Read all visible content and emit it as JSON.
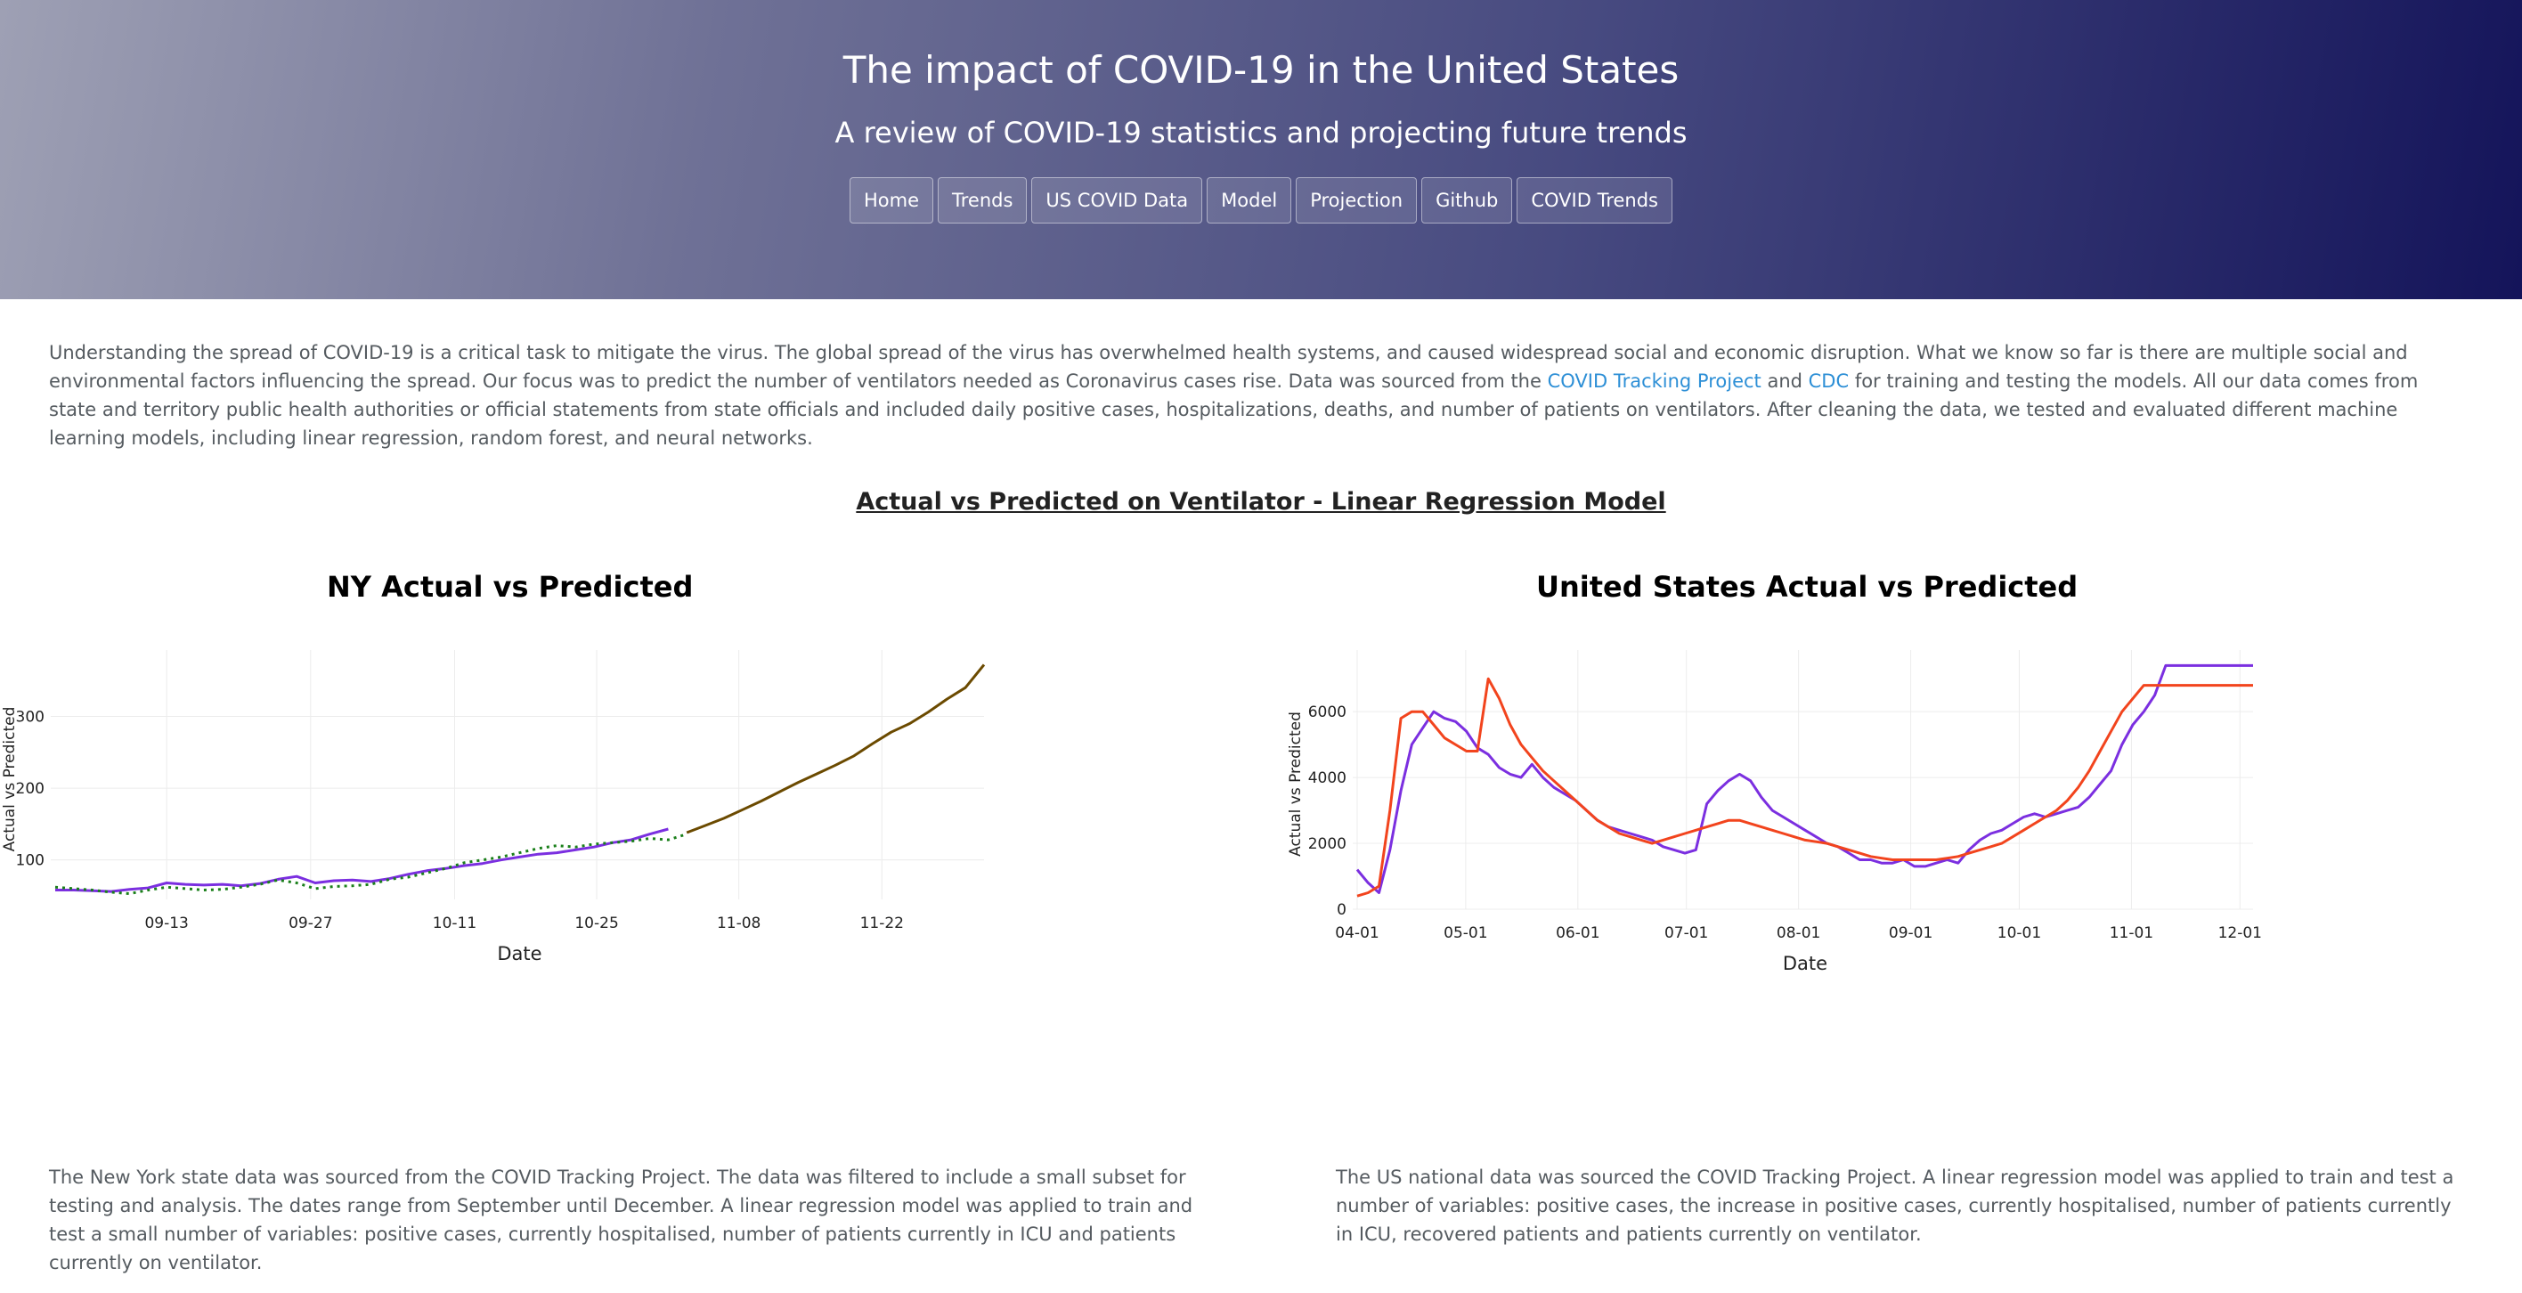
{
  "header": {
    "title": "The impact of COVID-19 in the United States",
    "subtitle": "A review of COVID-19 statistics and projecting future trends",
    "nav": [
      "Home",
      "Trends",
      "US COVID Data",
      "Model",
      "Projection",
      "Github",
      "COVID Trends"
    ]
  },
  "intro": {
    "part1": "Understanding the spread of COVID-19 is a critical task to mitigate the virus. The global spread of the virus has overwhelmed health systems, and caused widespread social and economic disruption. What we know so far is there are multiple social and environmental factors influencing the spread. Our focus was to predict the number of ventilators needed as Coronavirus cases rise. Data was sourced from the ",
    "link1": "COVID Tracking Project",
    "part2": " and ",
    "link2": "CDC",
    "part3": " for training and testing the models. All our data comes from state and territory public health authorities or official statements from state officials and included daily positive cases, hospitalizations, deaths, and number of patients on ventilators. After cleaning the data, we tested and evaluated different machine learning models, including linear regression, random forest, and neural networks."
  },
  "section_title": "Actual vs Predicted on Ventilator - Linear Regression Model",
  "colors": {
    "actual": "#7b2fe0",
    "predicted_ny": "#1a7f1a",
    "projection_ny": "#6b4a00",
    "predicted_us": "#f2441d"
  },
  "chart_data": [
    {
      "type": "line",
      "title": "NY Actual vs Predicted",
      "xlabel": "Date",
      "ylabel": "Actual vs Predicted",
      "x_ticks": [
        "09-13",
        "09-27",
        "10-11",
        "10-25",
        "11-08",
        "11-22"
      ],
      "y_ticks": [
        100,
        200,
        300
      ],
      "ylim": [
        45,
        380
      ],
      "series": [
        {
          "color": "#7b2fe0",
          "style": "solid",
          "x": [
            0,
            2,
            4,
            6,
            8,
            10,
            12,
            14,
            16,
            18,
            20,
            22,
            24,
            26,
            28,
            30,
            32,
            34,
            36,
            38,
            40,
            42,
            44,
            46,
            48,
            50,
            52,
            54,
            56,
            58,
            60,
            62,
            64,
            66
          ],
          "values": [
            58,
            58,
            57,
            56,
            59,
            61,
            68,
            66,
            65,
            66,
            64,
            67,
            73,
            77,
            68,
            71,
            72,
            70,
            74,
            80,
            85,
            88,
            92,
            95,
            100,
            104,
            108,
            110,
            114,
            118,
            124,
            128,
            136,
            143
          ]
        },
        {
          "color": "#1a7f1a",
          "style": "dotted",
          "x": [
            0,
            2,
            4,
            6,
            8,
            10,
            12,
            14,
            16,
            18,
            20,
            22,
            24,
            26,
            28,
            30,
            32,
            34,
            36,
            38,
            40,
            42,
            44,
            46,
            48,
            50,
            52,
            54,
            56,
            58,
            60,
            62,
            64,
            66,
            68
          ],
          "values": [
            62,
            60,
            58,
            55,
            53,
            58,
            62,
            60,
            58,
            59,
            62,
            66,
            72,
            68,
            60,
            63,
            64,
            66,
            73,
            76,
            82,
            88,
            96,
            100,
            104,
            110,
            116,
            120,
            118,
            122,
            124,
            126,
            130,
            128,
            136
          ]
        },
        {
          "color": "#6b4a00",
          "style": "solid",
          "x": [
            68,
            70,
            72,
            74,
            76,
            78,
            80,
            82,
            84,
            86,
            88,
            90,
            92,
            94,
            96,
            98,
            100
          ],
          "values": [
            138,
            148,
            158,
            170,
            182,
            195,
            208,
            220,
            232,
            245,
            262,
            278,
            290,
            306,
            324,
            340,
            372
          ]
        }
      ]
    },
    {
      "type": "line",
      "title": "United States Actual vs Predicted",
      "xlabel": "Date",
      "ylabel": "Actual vs Predicted",
      "x_ticks": [
        "04-01",
        "05-01",
        "06-01",
        "07-01",
        "08-01",
        "09-01",
        "10-01",
        "11-01",
        "12-01"
      ],
      "y_ticks": [
        0,
        2000,
        4000,
        6000
      ],
      "ylim": [
        0,
        7600
      ],
      "series": [
        {
          "color": "#7b2fe0",
          "style": "solid",
          "x": [
            0,
            3,
            6,
            9,
            12,
            15,
            18,
            21,
            24,
            27,
            30,
            33,
            36,
            39,
            42,
            45,
            48,
            51,
            54,
            57,
            60,
            63,
            66,
            69,
            72,
            75,
            78,
            81,
            84,
            87,
            90,
            93,
            96,
            99,
            102,
            105,
            108,
            111,
            114,
            117,
            120,
            123,
            126,
            129,
            132,
            135,
            138,
            141,
            144,
            147,
            150,
            153,
            156,
            159,
            162,
            165,
            168,
            171,
            174,
            177,
            180,
            183,
            186,
            189,
            192,
            195,
            198,
            201,
            204,
            207,
            210,
            213,
            216,
            219,
            222,
            225,
            228,
            231,
            234,
            237,
            240,
            243,
            246
          ],
          "values": [
            1200,
            800,
            500,
            1800,
            3600,
            5000,
            5500,
            6000,
            5800,
            5700,
            5400,
            4900,
            4700,
            4300,
            4100,
            4000,
            4400,
            4000,
            3700,
            3500,
            3300,
            3000,
            2700,
            2500,
            2400,
            2300,
            2200,
            2100,
            1900,
            1800,
            1700,
            1800,
            3200,
            3600,
            3900,
            4100,
            3900,
            3400,
            3000,
            2800,
            2600,
            2400,
            2200,
            2000,
            1900,
            1700,
            1500,
            1500,
            1400,
            1400,
            1500,
            1300,
            1300,
            1400,
            1500,
            1400,
            1800,
            2100,
            2300,
            2400,
            2600,
            2800,
            2900,
            2800,
            2900,
            3000,
            3100,
            3400,
            3800,
            4200,
            5000,
            5600,
            6000,
            6500,
            7400,
            7400,
            7400,
            7400,
            7400,
            7400,
            7400,
            7400,
            7400
          ]
        },
        {
          "color": "#f2441d",
          "style": "solid",
          "x": [
            0,
            3,
            6,
            9,
            12,
            15,
            18,
            21,
            24,
            27,
            30,
            33,
            36,
            39,
            42,
            45,
            48,
            51,
            54,
            57,
            60,
            63,
            66,
            69,
            72,
            75,
            78,
            81,
            84,
            87,
            90,
            93,
            96,
            99,
            102,
            105,
            108,
            111,
            114,
            117,
            120,
            123,
            126,
            129,
            132,
            135,
            138,
            141,
            144,
            147,
            150,
            153,
            156,
            159,
            162,
            165,
            168,
            171,
            174,
            177,
            180,
            183,
            186,
            189,
            192,
            195,
            198,
            201,
            204,
            207,
            210,
            213,
            216,
            219,
            222,
            225,
            228,
            231,
            234,
            237,
            240,
            243,
            246
          ],
          "values": [
            400,
            500,
            700,
            3000,
            5800,
            6000,
            6000,
            5600,
            5200,
            5000,
            4800,
            4800,
            7000,
            6400,
            5600,
            5000,
            4600,
            4200,
            3900,
            3600,
            3300,
            3000,
            2700,
            2500,
            2300,
            2200,
            2100,
            2000,
            2100,
            2200,
            2300,
            2400,
            2500,
            2600,
            2700,
            2700,
            2600,
            2500,
            2400,
            2300,
            2200,
            2100,
            2050,
            2000,
            1900,
            1800,
            1700,
            1600,
            1550,
            1500,
            1500,
            1500,
            1500,
            1500,
            1550,
            1600,
            1700,
            1800,
            1900,
            2000,
            2200,
            2400,
            2600,
            2800,
            3000,
            3300,
            3700,
            4200,
            4800,
            5400,
            6000,
            6400,
            6800,
            6800,
            6800,
            6800,
            6800,
            6800,
            6800,
            6800,
            6800,
            6800,
            6800
          ]
        }
      ]
    }
  ],
  "descriptions": {
    "ny": "The New York state data was sourced from the COVID Tracking Project. The data was filtered to include a small subset for testing and analysis. The dates range from September until December. A linear regression model was applied to train and test a small number of variables: positive cases, currently hospitalised, number of patients currently in ICU and patients currently on ventilator.",
    "us": "The US national data was sourced the COVID Tracking Project. A linear regression model was applied to train and test a number of variables: positive cases, the increase in positive cases, currently hospitalised, number of patients currently in ICU, recovered patients and patients currently on ventilator."
  }
}
